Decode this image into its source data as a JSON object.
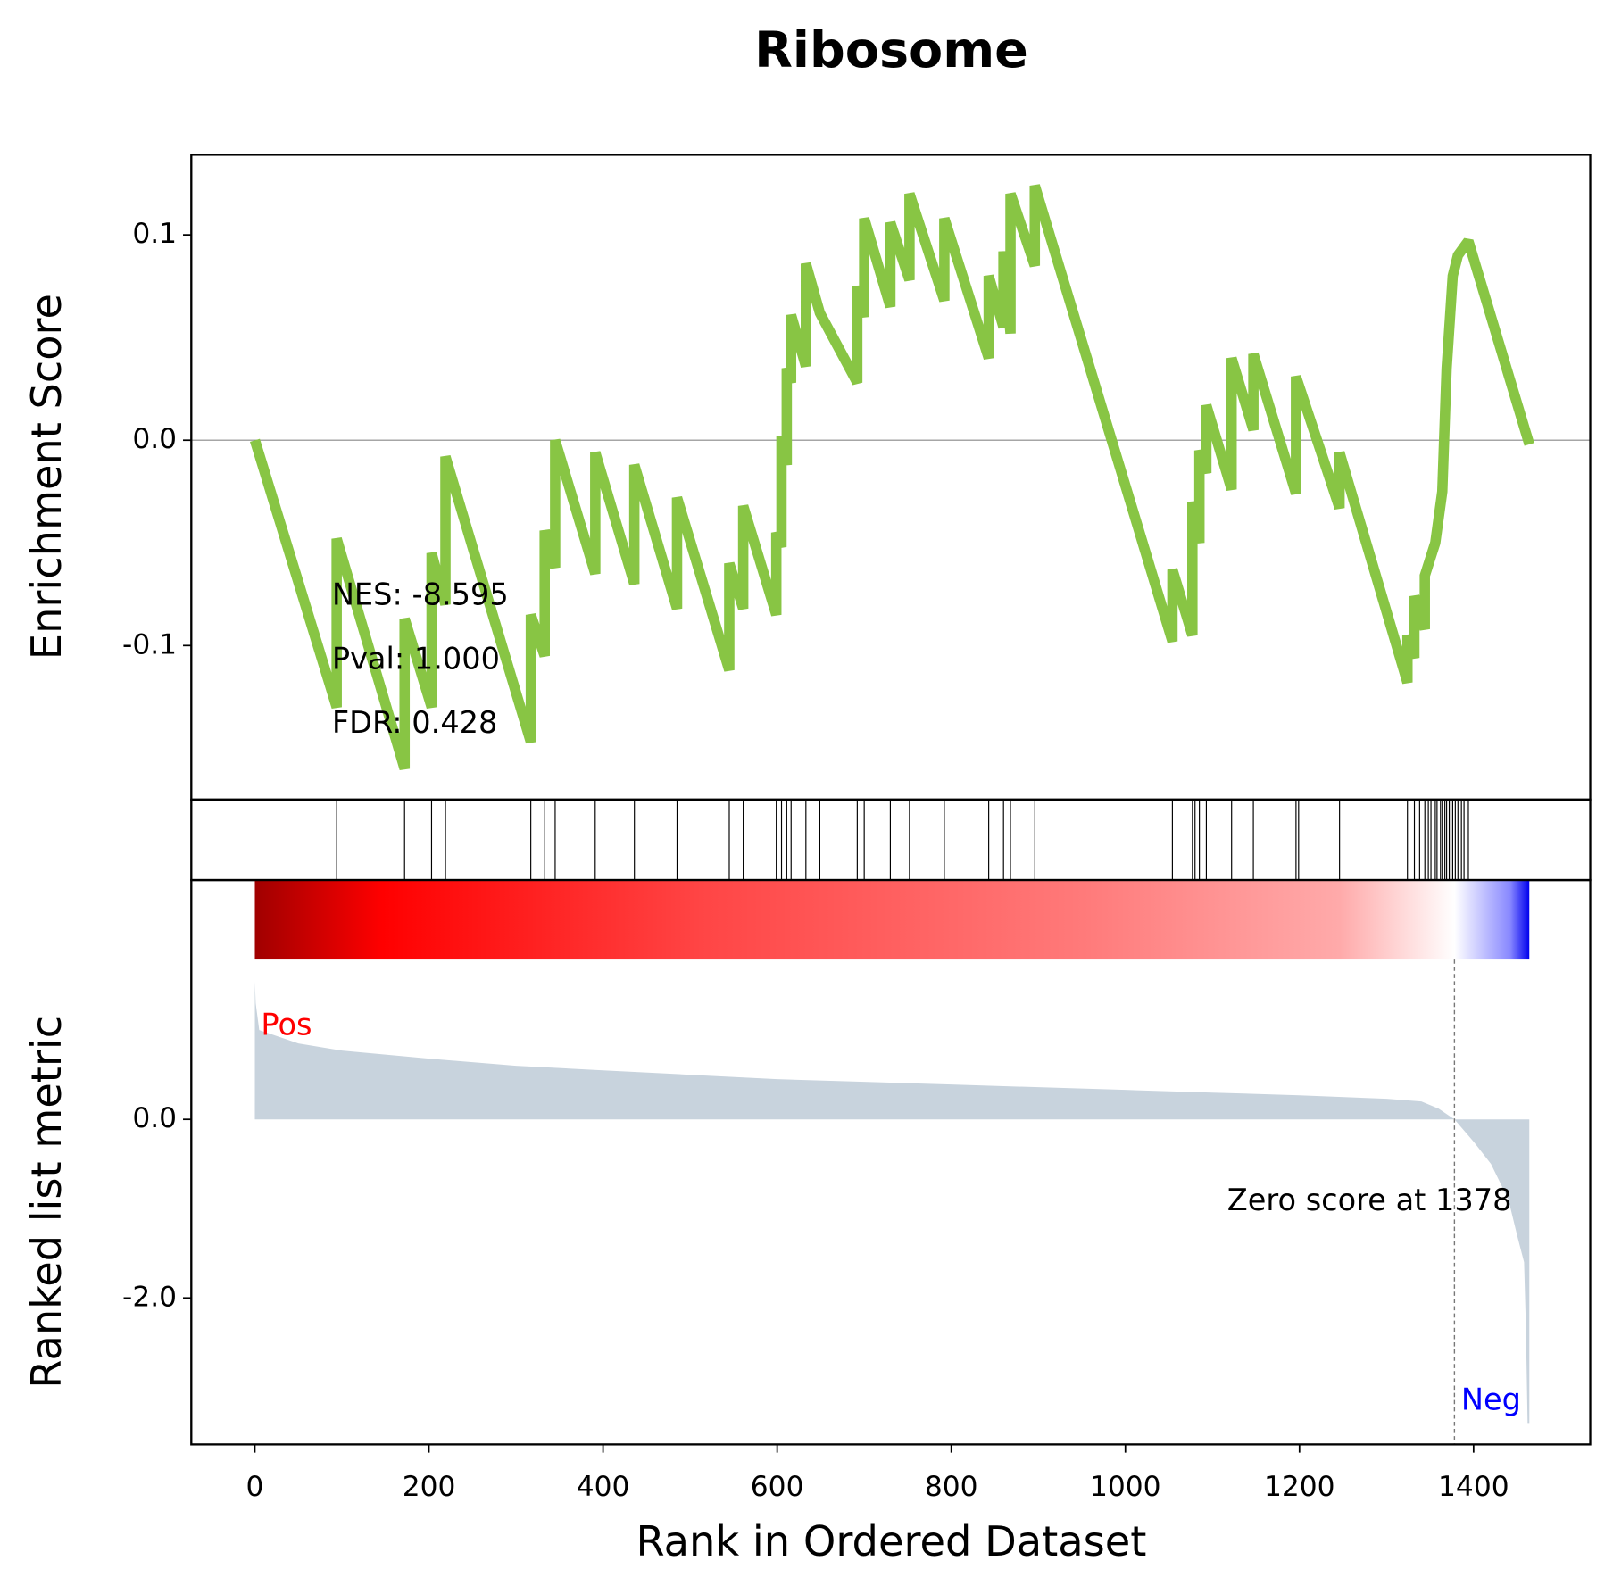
{
  "chart_data": [
    {
      "type": "line",
      "title": "Ribosome",
      "ylabel": "Enrichment Score",
      "x": [
        0,
        94,
        94,
        172,
        172,
        203,
        203,
        219,
        219,
        317,
        317,
        333,
        333,
        345,
        345,
        391,
        391,
        436,
        436,
        485,
        485,
        545,
        545,
        561,
        561,
        599,
        599,
        605,
        605,
        611,
        611,
        616,
        616,
        633,
        633,
        649,
        692,
        692,
        700,
        700,
        730,
        730,
        752,
        752,
        792,
        792,
        843,
        843,
        860,
        860,
        868,
        868,
        896,
        896,
        1054,
        1054,
        1077,
        1077,
        1085,
        1085,
        1093,
        1093,
        1122,
        1122,
        1147,
        1147,
        1196,
        1196,
        1246,
        1246,
        1324,
        1324,
        1332,
        1332,
        1344,
        1344,
        1356,
        1364,
        1369,
        1376,
        1382,
        1394,
        1464
      ],
      "series": [
        {
          "color": "#88c544",
          "values": [
            0,
            -0.13,
            -0.048,
            -0.16,
            -0.087,
            -0.13,
            -0.055,
            -0.08,
            -0.008,
            -0.147,
            -0.085,
            -0.105,
            -0.044,
            -0.062,
            0.0,
            -0.065,
            -0.006,
            -0.07,
            -0.012,
            -0.082,
            -0.028,
            -0.112,
            -0.06,
            -0.082,
            -0.032,
            -0.085,
            -0.045,
            -0.052,
            0.002,
            -0.012,
            0.035,
            0.028,
            0.061,
            0.036,
            0.086,
            0.062,
            0.028,
            0.075,
            0.06,
            0.108,
            0.065,
            0.106,
            0.078,
            0.12,
            0.068,
            0.108,
            0.04,
            0.08,
            0.055,
            0.092,
            0.052,
            0.12,
            0.085,
            0.124,
            -0.098,
            -0.063,
            -0.095,
            -0.03,
            -0.05,
            -0.005,
            -0.016,
            0.017,
            -0.024,
            0.04,
            0.005,
            0.042,
            -0.026,
            0.031,
            -0.033,
            -0.006,
            -0.118,
            -0.095,
            -0.106,
            -0.076,
            -0.092,
            -0.066,
            -0.05,
            -0.025,
            0.035,
            0.08,
            0.09,
            0.097,
            -0.002
          ]
        }
      ],
      "xlim": [
        -73,
        1534
      ],
      "ylim": [
        -0.175,
        0.139
      ],
      "yticks": [
        {
          "value": -0.1,
          "label": "-0.1"
        },
        {
          "value": 0,
          "label": "0.0"
        },
        {
          "value": 0.1,
          "label": "0.1"
        }
      ],
      "annotations": [
        "NES: -8.595",
        "Pval: 1.000",
        "FDR: 0.428"
      ]
    },
    {
      "type": "hits",
      "color": "#000000",
      "xlim": [
        -73,
        1534
      ],
      "x": [
        94,
        172,
        203,
        219,
        317,
        333,
        345,
        391,
        436,
        485,
        545,
        561,
        599,
        605,
        611,
        616,
        633,
        649,
        692,
        700,
        730,
        752,
        792,
        843,
        860,
        868,
        896,
        1054,
        1077,
        1080,
        1085,
        1093,
        1122,
        1147,
        1196,
        1199,
        1246,
        1324,
        1332,
        1338,
        1344,
        1348,
        1351,
        1356,
        1358,
        1362,
        1364,
        1367,
        1369,
        1372,
        1374,
        1376,
        1379,
        1382,
        1386,
        1389,
        1394
      ]
    },
    {
      "type": "area",
      "ylabel": "Ranked list metric",
      "xlabel": "Rank in Ordered Dataset",
      "color": "#c8d3dd",
      "x": [
        0,
        1,
        5,
        50,
        100,
        200,
        300,
        400,
        500,
        600,
        700,
        800,
        900,
        1000,
        1100,
        1200,
        1300,
        1340,
        1360,
        1378,
        1400,
        1420,
        1440,
        1450,
        1458,
        1460,
        1462,
        1464
      ],
      "values": [
        1.54,
        1.3,
        1.0,
        0.85,
        0.77,
        0.68,
        0.6,
        0.55,
        0.5,
        0.45,
        0.42,
        0.39,
        0.36,
        0.33,
        0.3,
        0.27,
        0.23,
        0.2,
        0.12,
        0.0,
        -0.25,
        -0.5,
        -0.9,
        -1.3,
        -1.6,
        -2.3,
        -3.4,
        -3.4
      ],
      "xlim": [
        -73,
        1534
      ],
      "ylim": [
        -3.64,
        2.68
      ],
      "xticks": [
        0,
        200,
        400,
        600,
        800,
        1000,
        1200,
        1400
      ],
      "yticks": [
        {
          "value": -2,
          "label": "-2.0"
        },
        {
          "value": 0,
          "label": "0.0"
        }
      ],
      "pos_label": "Pos",
      "pos_color": "#ff0000",
      "neg_label": "Neg",
      "neg_color": "#0000ff",
      "zero_label": "Zero score at 1378",
      "zero_rank": 1378
    }
  ]
}
